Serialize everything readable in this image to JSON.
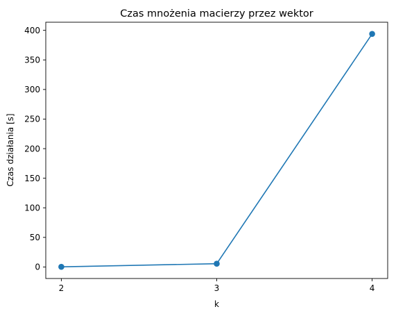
{
  "chart_data": {
    "type": "line",
    "title": "Czas mnożenia macierzy przez wektor",
    "xlabel": "k",
    "ylabel": "Czas działania [s]",
    "x": [
      2,
      3,
      4
    ],
    "series": [
      {
        "values": [
          0.2,
          5.5,
          394
        ],
        "color": "#1f77b4",
        "marker": "circle"
      }
    ],
    "xlim": [
      1.9,
      4.1
    ],
    "ylim": [
      -19.5,
      413.7
    ],
    "xticks": [
      2,
      3,
      4
    ],
    "xtick_labels": [
      "2",
      "3",
      "4"
    ],
    "yticks": [
      0,
      50,
      100,
      150,
      200,
      250,
      300,
      350,
      400
    ],
    "ytick_labels": [
      "0",
      "50",
      "100",
      "150",
      "200",
      "250",
      "300",
      "350",
      "400"
    ],
    "grid": false,
    "legend": "none"
  }
}
